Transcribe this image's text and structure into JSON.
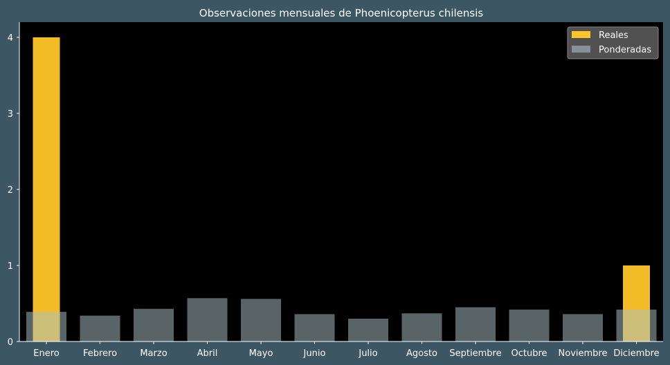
{
  "chart_data": {
    "type": "bar",
    "title": "Observaciones mensuales de Phoenicopterus chilensis",
    "xlabel": "",
    "ylabel": "",
    "categories": [
      "Enero",
      "Febrero",
      "Marzo",
      "Abril",
      "Mayo",
      "Junio",
      "Julio",
      "Agosto",
      "Septiembre",
      "Octubre",
      "Noviembre",
      "Diciembre"
    ],
    "series": [
      {
        "name": "Reales",
        "values": [
          4,
          0,
          0,
          0,
          0,
          0,
          0,
          0,
          0,
          0,
          0,
          1
        ],
        "color": "#ffc629"
      },
      {
        "name": "Ponderadas",
        "values": [
          0.39,
          0.34,
          0.43,
          0.57,
          0.56,
          0.36,
          0.3,
          0.37,
          0.45,
          0.42,
          0.36,
          0.42
        ],
        "color": "#a8c0c4"
      }
    ],
    "ylim": [
      0,
      4.2
    ],
    "yticks": [
      "0",
      "1",
      "2",
      "3",
      "4"
    ],
    "legend_position": "top-right",
    "grid": false,
    "colors": {
      "figure_bg": "#3d5663",
      "plot_bg": "#000000",
      "text": "#ffffff"
    }
  }
}
